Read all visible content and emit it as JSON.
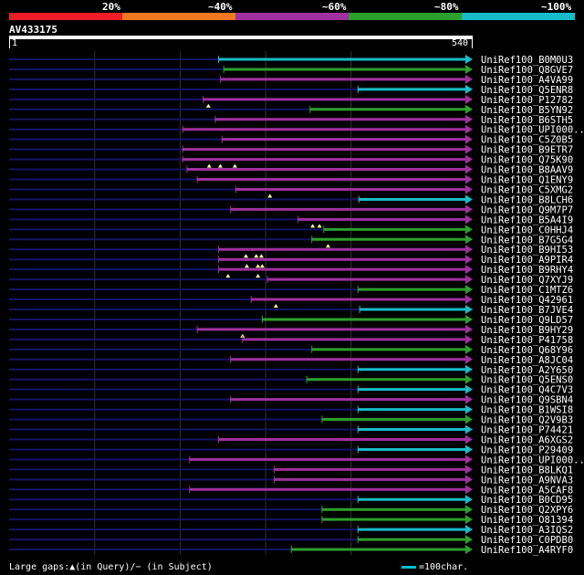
{
  "legend": {
    "labels": [
      "20%",
      "~40%",
      "~60%",
      "~80%",
      "~100%"
    ],
    "colors": [
      "#ee1c25",
      "#f07820",
      "#a0309f",
      "#2ca02c",
      "#17bcc8"
    ]
  },
  "query": {
    "name": "AV433175",
    "start": "1",
    "end": "540",
    "length": 540
  },
  "colors": {
    "backbone": "#141468",
    "grid": "#333333",
    "gap": "#ffff99"
  },
  "footer": {
    "gaps_text": "Large gaps:▲(in Query)/− (in Subject)",
    "scale_text": "=100char."
  },
  "hits": [
    {
      "name": "UniRef100_B0M0U3",
      "start": 245,
      "color": "cyan"
    },
    {
      "name": "UniRef100_Q8GVE7",
      "start": 251,
      "color": "green"
    },
    {
      "name": "UniRef100_A4VA99",
      "start": 247,
      "color": "purple"
    },
    {
      "name": "UniRef100_Q5ENR8",
      "start": 408,
      "color": "cyan"
    },
    {
      "name": "UniRef100_P12782",
      "start": 227,
      "color": "purple",
      "gaps": [
        233
      ]
    },
    {
      "name": "UniRef100_B5YN92",
      "start": 352,
      "color": "green"
    },
    {
      "name": "UniRef100_B6STH5",
      "start": 241,
      "color": "purple"
    },
    {
      "name": "UniRef100_UPI000..",
      "start": 203,
      "color": "purple"
    },
    {
      "name": "UniRef100_C5Z0B5",
      "start": 249,
      "color": "purple"
    },
    {
      "name": "UniRef100_B9ETR7",
      "start": 203,
      "color": "purple"
    },
    {
      "name": "UniRef100_Q75K90",
      "start": 203,
      "color": "purple",
      "gaps": [
        234,
        247,
        264
      ]
    },
    {
      "name": "UniRef100_B8AAV9",
      "start": 208,
      "color": "purple"
    },
    {
      "name": "UniRef100_Q1ENY9",
      "start": 220,
      "color": "purple"
    },
    {
      "name": "UniRef100_C5XMG2",
      "start": 265,
      "color": "purple",
      "gaps": [
        305
      ]
    },
    {
      "name": "UniRef100_B8LCH6",
      "start": 409,
      "color": "cyan"
    },
    {
      "name": "UniRef100_Q9M7P7",
      "start": 259,
      "color": "purple"
    },
    {
      "name": "UniRef100_B5A4I9",
      "start": 338,
      "color": "purple",
      "gaps": [
        355,
        363
      ]
    },
    {
      "name": "UniRef100_C0HHJ4",
      "start": 368,
      "color": "green"
    },
    {
      "name": "UniRef100_B7G5G4",
      "start": 354,
      "color": "green",
      "gaps": [
        373
      ]
    },
    {
      "name": "UniRef100_B9HI53",
      "start": 245,
      "color": "purple",
      "gaps": [
        277,
        289,
        295
      ]
    },
    {
      "name": "UniRef100_A9PIR4",
      "start": 245,
      "color": "purple",
      "gaps": [
        278,
        291,
        296
      ]
    },
    {
      "name": "UniRef100_B9RHY4",
      "start": 245,
      "color": "purple",
      "gaps": [
        256,
        291
      ]
    },
    {
      "name": "UniRef100_Q7XYJ9",
      "start": 302,
      "color": "purple"
    },
    {
      "name": "UniRef100_C1MTZ6",
      "start": 408,
      "color": "green"
    },
    {
      "name": "UniRef100_Q42961",
      "start": 283,
      "color": "purple",
      "gaps": [
        312
      ]
    },
    {
      "name": "UniRef100_B7JVE4",
      "start": 410,
      "color": "cyan"
    },
    {
      "name": "UniRef100_Q9LD57",
      "start": 296,
      "color": "green"
    },
    {
      "name": "UniRef100_B9HY29",
      "start": 220,
      "color": "purple",
      "gaps": [
        273
      ]
    },
    {
      "name": "UniRef100_P41758",
      "start": 273,
      "color": "purple"
    },
    {
      "name": "UniRef100_Q68Y96",
      "start": 354,
      "color": "green"
    },
    {
      "name": "UniRef100_A8JC04",
      "start": 259,
      "color": "purple"
    },
    {
      "name": "UniRef100_A2Y650",
      "start": 408,
      "color": "cyan"
    },
    {
      "name": "UniRef100_Q5ENS0",
      "start": 348,
      "color": "green"
    },
    {
      "name": "UniRef100_Q4C7V3",
      "start": 408,
      "color": "cyan"
    },
    {
      "name": "UniRef100_Q9SBN4",
      "start": 259,
      "color": "purple"
    },
    {
      "name": "UniRef100_B1WSI8",
      "start": 408,
      "color": "cyan"
    },
    {
      "name": "UniRef100_Q2V9B3",
      "start": 366,
      "color": "green"
    },
    {
      "name": "UniRef100_P74421",
      "start": 408,
      "color": "cyan"
    },
    {
      "name": "UniRef100_A6XGS2",
      "start": 245,
      "color": "purple"
    },
    {
      "name": "UniRef100_P29409",
      "start": 408,
      "color": "cyan"
    },
    {
      "name": "UniRef100_UPI000..",
      "start": 211,
      "color": "purple"
    },
    {
      "name": "UniRef100_B8LKQ1",
      "start": 310,
      "color": "purple"
    },
    {
      "name": "UniRef100_A9NVA3",
      "start": 310,
      "color": "purple"
    },
    {
      "name": "UniRef100_A5CAF8",
      "start": 211,
      "color": "purple"
    },
    {
      "name": "UniRef100_B0CD95",
      "start": 408,
      "color": "cyan"
    },
    {
      "name": "UniRef100_Q2XPY6",
      "start": 366,
      "color": "green"
    },
    {
      "name": "UniRef100_O81394",
      "start": 366,
      "color": "green"
    },
    {
      "name": "UniRef100_A3IQS2",
      "start": 408,
      "color": "cyan"
    },
    {
      "name": "UniRef100_C0PDB0",
      "start": 408,
      "color": "green"
    },
    {
      "name": "UniRef100_A4RYF0",
      "start": 330,
      "color": "green"
    }
  ]
}
